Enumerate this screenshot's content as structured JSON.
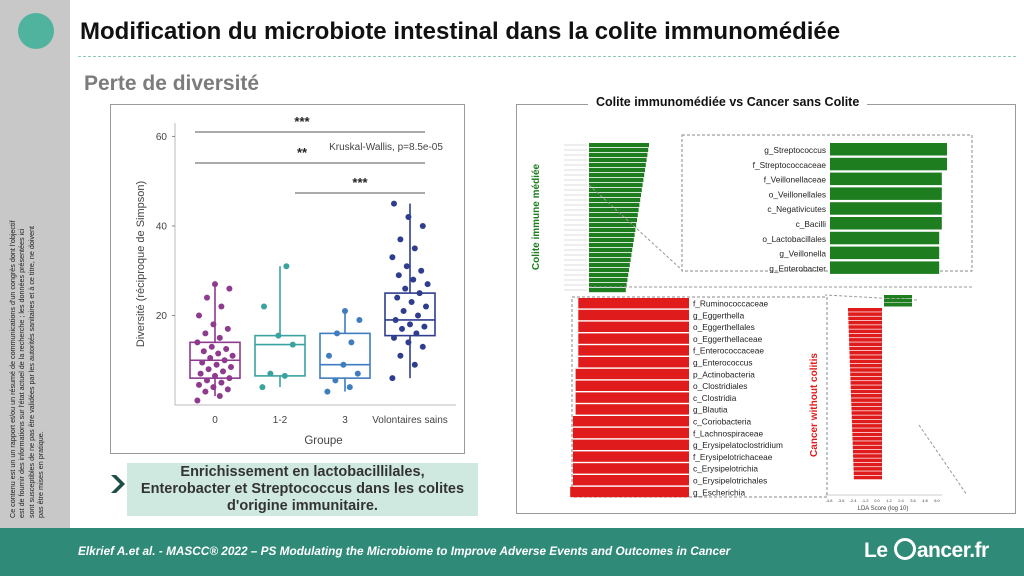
{
  "slide": {
    "title": "Modification du microbiote intestinal dans la colite immunomédiée",
    "subtitle": "Perte de diversité",
    "disclaimer": "Ce contenu est un un rapport et/ou un résumé de communications d'un congrès dont l'objectif est de fournir des informations sur l'état actuel de la recherche ; les données présentées ici sont susceptibles de ne pas être validées par les autorités sanitaires et à ce titre, ne doivent pas être mises en pratique.",
    "conclusion": [
      "Enrichissement en lactobacillilales,",
      "Enterobacter et Streptococcus dans les colites",
      "d'origine immunitaire."
    ],
    "citation": "Elkrief A.et al. - MASCC® 2022 – PS Modulating the Microbiome to Improve Adverse Events and Outcomes in Cancer",
    "brand": {
      "left": "Le ",
      "right": "ancer.fr"
    },
    "colors": {
      "accent": "#2f8a78",
      "sidebar": "#c8c8c8",
      "highlight": "#cfe9e1",
      "green": "#1e7d1e",
      "red": "#e01b1b"
    }
  },
  "chart_data": [
    {
      "type": "box",
      "title": "",
      "xlabel": "Groupe",
      "ylabel": "Diversité (réciproque de Simpson)",
      "ylim": [
        0,
        63
      ],
      "yticks": [
        20,
        40,
        60
      ],
      "annotation": "Kruskal-Wallis, p=8.5e-05",
      "significance": [
        {
          "from": "0",
          "to": "Volontaires sains",
          "label": "***"
        },
        {
          "from": "0",
          "to": "Volontaires sains",
          "label": "**"
        },
        {
          "from": "1-2",
          "to": "Volontaires sains",
          "label": "***"
        }
      ],
      "groups": [
        {
          "name": "0",
          "color": "#8e3a8e",
          "min": 2,
          "q1": 6,
          "median": 10,
          "q3": 14,
          "max": 27,
          "points": [
            1,
            2,
            3,
            3.5,
            4,
            4.5,
            5,
            5.5,
            6,
            6.5,
            7,
            7.5,
            8,
            8.5,
            9,
            9.5,
            10,
            10.5,
            11,
            11.5,
            12,
            12.5,
            13,
            14,
            15,
            16,
            17,
            18,
            20,
            22,
            24,
            26,
            27
          ]
        },
        {
          "name": "1-2",
          "color": "#3aa3a0",
          "min": 4,
          "q1": 6.5,
          "median": 13.5,
          "q3": 15.5,
          "max": 31,
          "points": [
            4,
            6.5,
            7,
            13.5,
            15.5,
            22,
            31
          ]
        },
        {
          "name": "3",
          "color": "#3f7dbf",
          "min": 3,
          "q1": 6,
          "median": 9,
          "q3": 16,
          "max": 21,
          "points": [
            3,
            4,
            5.5,
            7,
            9,
            11,
            14,
            16,
            19,
            21
          ]
        },
        {
          "name": "Volontaires sains",
          "color": "#2f3d8f",
          "min": 6,
          "q1": 15.5,
          "median": 19,
          "q3": 25,
          "max": 45,
          "points": [
            6,
            9,
            11,
            13,
            14,
            15,
            16,
            17,
            17.5,
            18,
            19,
            20,
            21,
            22,
            23,
            24,
            25,
            26,
            27,
            28,
            29,
            30,
            31,
            33,
            35,
            37,
            40,
            42,
            45
          ]
        }
      ]
    },
    {
      "type": "bar",
      "title": "Colite immunomédiée vs Cancer sans Colite",
      "xlabel": "LDA Score (log 10)",
      "series": [
        {
          "name": "Colite immune médiée",
          "color": "#1e7d1e",
          "categories": [
            "g_Streptococcus",
            "f_Streptococcaceae",
            "f_Veillonellaceae",
            "o_Veillonellales",
            "c_Negativicutes",
            "c_Bacilli",
            "o_Lactobacillales",
            "g_Veillonella",
            "g_Enterobacter"
          ],
          "values": [
            4.5,
            4.5,
            4.3,
            4.3,
            4.3,
            4.3,
            4.2,
            4.2,
            4.2
          ]
        },
        {
          "name": "Cancer without colitis",
          "color": "#e01b1b",
          "categories": [
            "f_Ruminococcaceae",
            "g_Eggerthella",
            "o_Eggerthellales",
            "o_Eggerthellaceae",
            "f_Enterococcaceae",
            "g_Enterococcus",
            "p_Actinobacteria",
            "o_Clostridiales",
            "c_Clostridia",
            "g_Blautia",
            "c_Coriobacteria",
            "f_Lachnospiraceae",
            "g_Erysipelatoclostridium",
            "f_Erysipelotrichaceae",
            "c_Erysipelotrichia",
            "o_Erysipelotrichales",
            "g_Escherichia"
          ],
          "values": [
            -4.1,
            -4.1,
            -4.1,
            -4.1,
            -4.1,
            -4.1,
            -4.2,
            -4.2,
            -4.2,
            -4.2,
            -4.3,
            -4.3,
            -4.3,
            -4.3,
            -4.3,
            -4.3,
            -4.4
          ]
        }
      ],
      "mini_axis_ticks": [
        "-4.8",
        "-3.6",
        "-2.4",
        "-1.2",
        "0.0",
        "1.2",
        "2.4",
        "3.6",
        "4.8",
        "6.0"
      ]
    }
  ]
}
